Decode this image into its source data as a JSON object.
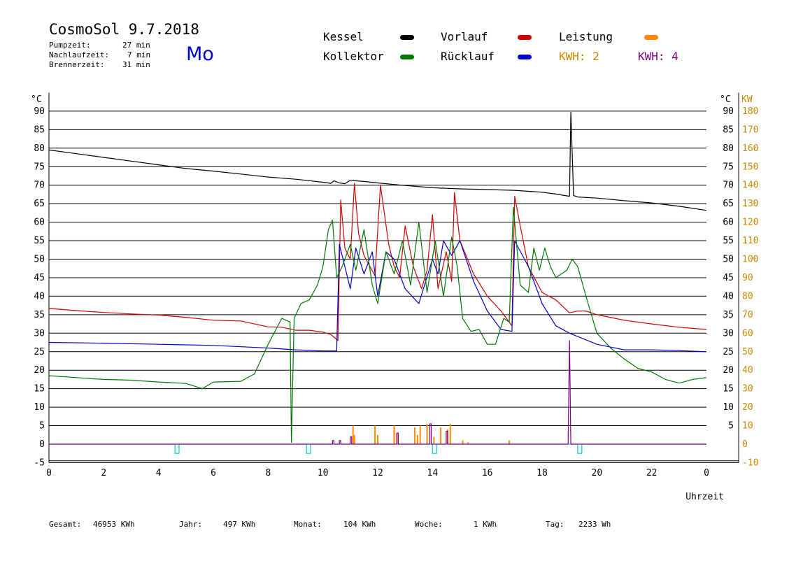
{
  "header": {
    "title": "CosmoSol 9.7.2018",
    "day": "Mo",
    "info": [
      {
        "label": "Pumpzeit:",
        "value": "27 min"
      },
      {
        "label": "Nachlaufzeit:",
        "value": "7 min"
      },
      {
        "label": "Brennerzeit:",
        "value": "31 min"
      }
    ]
  },
  "legend": {
    "kessel": "Kessel",
    "vorlauf": "Vorlauf",
    "leistung": "Leistung",
    "kollektor": "Kollektor",
    "ruecklauf": "Rücklauf",
    "kwh2": "KWH: 2",
    "kwh4": "KWH: 4"
  },
  "colors": {
    "kessel": "#000000",
    "vorlauf": "#cc0000",
    "ruecklauf": "#0000cc",
    "kollektor": "#007700",
    "leistung": "#ff8800",
    "kwh4": "#800080",
    "pump": "#00cccc",
    "right_axis": "#cc8800"
  },
  "footer": {
    "gesamt_label": "Gesamt:",
    "gesamt_value": "46953 KWh",
    "jahr_label": "Jahr:",
    "jahr_value": "497 KWh",
    "monat_label": "Monat:",
    "monat_value": "104 KWh",
    "woche_label": "Woche:",
    "woche_value": "1 KWh",
    "tag_label": "Tag:",
    "tag_value": "2233 Wh"
  },
  "chart_data": {
    "type": "line",
    "xlabel": "Uhrzeit",
    "ylabel_left": "°C",
    "ylabel_right_unit": "°C",
    "ylabel_right_power": "KW",
    "xlim": [
      0,
      24
    ],
    "ylim": [
      -5,
      95
    ],
    "x_ticks": [
      "0",
      "2",
      "4",
      "6",
      "8",
      "10",
      "12",
      "14",
      "16",
      "18",
      "20",
      "22",
      "0"
    ],
    "y_ticks_left": [
      "90",
      "85",
      "80",
      "75",
      "70",
      "65",
      "60",
      "55",
      "50",
      "45",
      "40",
      "35",
      "30",
      "25",
      "20",
      "15",
      "10",
      "5",
      "0",
      "-5"
    ],
    "y_ticks_right_temp": [
      "90",
      "85",
      "80",
      "75",
      "70",
      "65",
      "60",
      "55",
      "50",
      "45",
      "40",
      "35",
      "30",
      "25",
      "20",
      "15",
      "10",
      "5"
    ],
    "y_ticks_right_power": [
      "180",
      "170",
      "160",
      "150",
      "140",
      "130",
      "120",
      "110",
      "100",
      "90",
      "80",
      "70",
      "60",
      "50",
      "40",
      "30",
      "20",
      "10",
      "0",
      "-10"
    ],
    "series": [
      {
        "name": "Kessel",
        "key": "kessel",
        "x": [
          0,
          1,
          2,
          3,
          4,
          5,
          6,
          7,
          8,
          9,
          10,
          10.3,
          10.4,
          10.6,
          10.8,
          11,
          11.5,
          12,
          13,
          14,
          15,
          16,
          17,
          18,
          18.5,
          19,
          19.05,
          19.15,
          19.3,
          20,
          21,
          22,
          23,
          24
        ],
        "y": [
          79.5,
          78.5,
          77.5,
          76.5,
          75.5,
          74.5,
          73.8,
          73,
          72.2,
          71.6,
          70.8,
          70.5,
          71.2,
          70.6,
          70.4,
          71.3,
          71,
          70.6,
          69.9,
          69.3,
          69,
          68.8,
          68.6,
          68.1,
          67.6,
          67,
          89.7,
          67.2,
          66.8,
          66.5,
          65.8,
          65.2,
          64.3,
          63.2
        ]
      },
      {
        "name": "Vorlauf",
        "key": "vorlauf",
        "x": [
          0,
          1,
          2,
          3,
          4,
          5,
          6,
          7,
          7.5,
          8,
          8.5,
          9,
          9.5,
          10,
          10.3,
          10.55,
          10.65,
          10.8,
          11,
          11.15,
          11.3,
          11.5,
          11.9,
          12.1,
          12.4,
          12.6,
          12.8,
          13.0,
          13.3,
          13.6,
          13.8,
          14.0,
          14.2,
          14.5,
          14.7,
          14.8,
          15.0,
          15.5,
          16,
          16.5,
          16.9,
          17.0,
          17.2,
          17.5,
          18,
          18.5,
          19,
          19.3,
          19.6,
          20,
          21,
          22,
          23,
          24
        ],
        "y": [
          36.7,
          36.1,
          35.6,
          35.2,
          34.9,
          34.3,
          33.5,
          33.3,
          32.5,
          31.7,
          31.6,
          30.8,
          30.8,
          30.3,
          29.6,
          28,
          66,
          53,
          50,
          70.5,
          57,
          51,
          45.5,
          70,
          54,
          48,
          45,
          59,
          48,
          42,
          47,
          62,
          42,
          52,
          44,
          68,
          55,
          46,
          40,
          36,
          32,
          67,
          59,
          48,
          41,
          39,
          35.5,
          36,
          36,
          35,
          33.5,
          32.5,
          31.6,
          31
        ]
      },
      {
        "name": "Rücklauf",
        "key": "ruecklauf",
        "x": [
          0,
          2,
          4,
          6,
          8,
          9,
          10,
          10.5,
          10.6,
          10.8,
          11.0,
          11.2,
          11.5,
          11.8,
          12.0,
          12.3,
          12.6,
          13.0,
          13.5,
          14.0,
          14.2,
          14.4,
          14.7,
          15.0,
          15.5,
          16,
          16.5,
          16.9,
          17.0,
          17.5,
          18,
          18.5,
          19,
          20,
          21,
          22,
          23,
          24
        ],
        "y": [
          27.5,
          27.3,
          27,
          26.7,
          26,
          25.5,
          25.2,
          25.2,
          54,
          48,
          42,
          53,
          46,
          52,
          40,
          52,
          50,
          42,
          38,
          50,
          46,
          55,
          51,
          55,
          44,
          36,
          31,
          30.5,
          55,
          48,
          38,
          32,
          30,
          27,
          25.5,
          25.5,
          25.3,
          25
        ]
      },
      {
        "name": "Kollektor",
        "key": "kollektor",
        "x": [
          0,
          1,
          2,
          3,
          4,
          5,
          5.6,
          6,
          7,
          7.5,
          8,
          8.5,
          8.8,
          8.85,
          8.95,
          9.2,
          9.5,
          9.8,
          10.0,
          10.2,
          10.35,
          10.5,
          10.7,
          11,
          11.2,
          11.5,
          11.8,
          12,
          12.3,
          12.6,
          12.9,
          13.2,
          13.5,
          13.8,
          14.1,
          14.4,
          14.7,
          14.9,
          15.1,
          15.4,
          15.7,
          16,
          16.3,
          16.6,
          16.8,
          16.95,
          17.2,
          17.5,
          17.7,
          17.9,
          18.1,
          18.3,
          18.5,
          18.7,
          18.9,
          19.1,
          19.3,
          19.6,
          20,
          20.5,
          21,
          21.5,
          22,
          22.5,
          23,
          23.5,
          24
        ],
        "y": [
          18.5,
          18,
          17.5,
          17.3,
          16.8,
          16.4,
          15,
          16.8,
          17,
          19,
          27,
          34,
          33,
          0.5,
          34,
          38,
          39,
          43,
          48,
          58,
          60.5,
          45,
          48,
          54,
          47,
          58,
          43,
          38,
          52,
          46,
          55,
          43,
          60,
          41,
          55,
          40,
          56,
          48,
          34,
          30.5,
          31,
          27,
          27,
          34,
          33,
          64,
          43,
          41,
          53,
          47,
          53,
          48,
          45,
          46,
          47,
          50,
          48,
          40,
          30,
          26,
          23,
          20.5,
          19.5,
          17.5,
          16.5,
          17.5,
          18
        ]
      },
      {
        "name": "Pumpe",
        "key": "pump",
        "x": [
          0,
          4.6,
          4.6,
          4.75,
          4.75,
          9.4,
          9.4,
          9.55,
          9.55,
          14.0,
          14.0,
          14.15,
          14.15,
          19.3,
          19.3,
          19.45,
          19.45,
          24
        ],
        "y": [
          0,
          0,
          -2.5,
          -2.5,
          0,
          0,
          -2.5,
          -2.5,
          0,
          0,
          -2.5,
          -2.5,
          0,
          0,
          -2.5,
          -2.5,
          0,
          0
        ]
      },
      {
        "name": "KWH: 4",
        "key": "kwh4",
        "x": [
          0,
          10.35,
          10.35,
          10.4,
          10.4,
          10.6,
          10.6,
          10.65,
          10.65,
          11.0,
          11.0,
          11.05,
          11.05,
          12.7,
          12.7,
          12.75,
          12.75,
          13.9,
          13.9,
          13.95,
          13.95,
          14.5,
          14.5,
          14.55,
          14.55,
          18.95,
          18.95,
          19.0,
          19.0,
          19.05,
          19.05,
          19.1,
          19.1,
          24
        ],
        "y": [
          0,
          0,
          1,
          1,
          0,
          0,
          1,
          1,
          0,
          0,
          2,
          2,
          0,
          0,
          3,
          3,
          0,
          0,
          5.5,
          5.5,
          0,
          0,
          3.5,
          3.5,
          0,
          0,
          0,
          28,
          28,
          0,
          0,
          0,
          0,
          0
        ]
      }
    ],
    "bars": {
      "key": "leistung",
      "x": [
        11.1,
        11.15,
        11.9,
        12.0,
        12.6,
        12.7,
        13.35,
        13.45,
        13.55,
        13.8,
        14.05,
        14.3,
        14.55,
        14.65,
        15.1,
        15.3,
        16.8
      ],
      "values": [
        10,
        5,
        10,
        5,
        10,
        6,
        9,
        5,
        10,
        11,
        4,
        9,
        8,
        11,
        2,
        1,
        2
      ]
    }
  }
}
